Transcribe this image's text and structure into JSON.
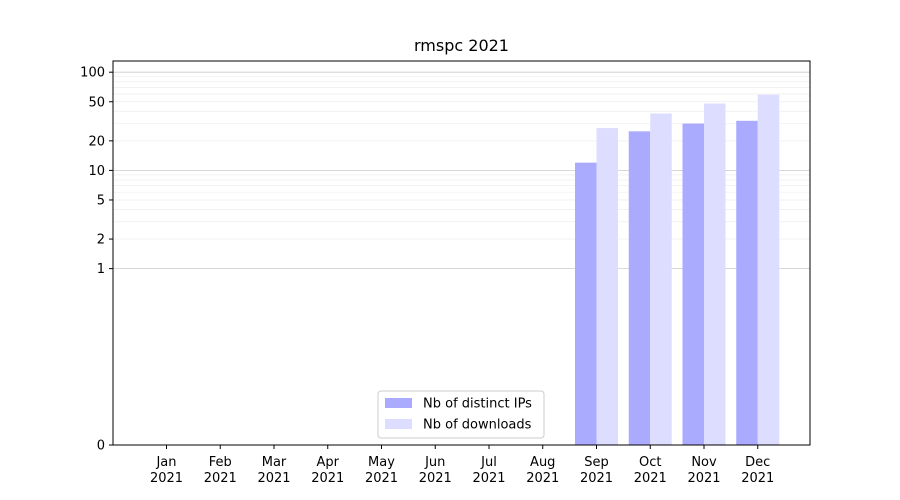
{
  "chart_data": {
    "type": "bar",
    "title": "rmspc 2021",
    "xlabel": "",
    "ylabel": "",
    "yscale": "symlog",
    "ylim": [
      0,
      130
    ],
    "yticks": [
      0,
      1,
      2,
      5,
      10,
      20,
      50,
      100
    ],
    "ytick_labels": [
      "0",
      "1",
      "2",
      "5",
      "10",
      "20",
      "50",
      "100"
    ],
    "categories": [
      [
        "Jan",
        "2021"
      ],
      [
        "Feb",
        "2021"
      ],
      [
        "Mar",
        "2021"
      ],
      [
        "Apr",
        "2021"
      ],
      [
        "May",
        "2021"
      ],
      [
        "Jun",
        "2021"
      ],
      [
        "Jul",
        "2021"
      ],
      [
        "Aug",
        "2021"
      ],
      [
        "Sep",
        "2021"
      ],
      [
        "Oct",
        "2021"
      ],
      [
        "Nov",
        "2021"
      ],
      [
        "Dec",
        "2021"
      ]
    ],
    "series": [
      {
        "name": "Nb of distinct IPs",
        "color": "#aaaaff",
        "values": [
          0,
          0,
          0,
          0,
          0,
          0,
          0,
          0,
          12,
          25,
          30,
          32
        ]
      },
      {
        "name": "Nb of downloads",
        "color": "#ddddff",
        "values": [
          0,
          0,
          0,
          0,
          0,
          0,
          0,
          0,
          27,
          38,
          48,
          59
        ]
      }
    ],
    "grid": true,
    "legend_position": "lower-center"
  }
}
